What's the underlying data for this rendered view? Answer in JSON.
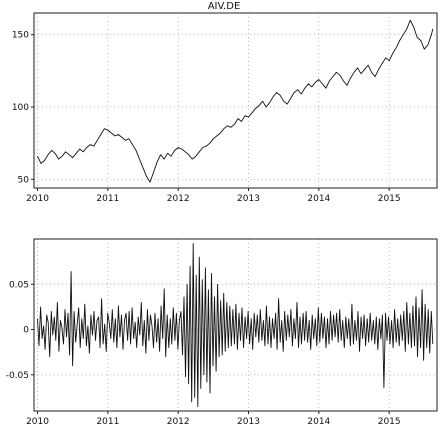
{
  "chart_data": [
    {
      "type": "line",
      "title": "AIV.DE",
      "xlabel": "",
      "ylabel": "",
      "xlim": [
        2009.95,
        2015.68
      ],
      "ylim": [
        44,
        165
      ],
      "grid": true,
      "xticks": [
        2010,
        2011,
        2012,
        2013,
        2014,
        2015
      ],
      "xtick_labels": [
        "2010",
        "2011",
        "2012",
        "2013",
        "2014",
        "2015"
      ],
      "yticks": [
        50,
        100,
        150
      ],
      "ytick_labels": [
        "50",
        "100",
        "150"
      ],
      "series": [
        {
          "x": [
            2010.0,
            2010.05,
            2010.1,
            2010.15,
            2010.2,
            2010.25,
            2010.3,
            2010.35,
            2010.4,
            2010.45,
            2010.5,
            2010.55,
            2010.6,
            2010.65,
            2010.7,
            2010.75,
            2010.8,
            2010.85,
            2010.9,
            2010.95,
            2011.0,
            2011.05,
            2011.1,
            2011.15,
            2011.2,
            2011.25,
            2011.3,
            2011.35,
            2011.4,
            2011.45,
            2011.5,
            2011.55,
            2011.6,
            2011.65,
            2011.7,
            2011.75,
            2011.8,
            2011.85,
            2011.9,
            2011.95,
            2012.0,
            2012.05,
            2012.1,
            2012.15,
            2012.2,
            2012.25,
            2012.3,
            2012.35,
            2012.4,
            2012.45,
            2012.5,
            2012.55,
            2012.6,
            2012.65,
            2012.7,
            2012.75,
            2012.8,
            2012.85,
            2012.9,
            2012.95,
            2013.0,
            2013.05,
            2013.1,
            2013.15,
            2013.2,
            2013.25,
            2013.3,
            2013.35,
            2013.4,
            2013.45,
            2013.5,
            2013.55,
            2013.6,
            2013.65,
            2013.7,
            2013.75,
            2013.8,
            2013.85,
            2013.9,
            2013.95,
            2014.0,
            2014.05,
            2014.1,
            2014.15,
            2014.2,
            2014.25,
            2014.3,
            2014.35,
            2014.4,
            2014.45,
            2014.5,
            2014.55,
            2014.6,
            2014.65,
            2014.7,
            2014.75,
            2014.8,
            2014.85,
            2014.9,
            2014.95,
            2015.0,
            2015.05,
            2015.1,
            2015.15,
            2015.2,
            2015.25,
            2015.3,
            2015.35,
            2015.4,
            2015.45,
            2015.5,
            2015.55,
            2015.6,
            2015.62
          ],
          "values": [
            66,
            61,
            63,
            67,
            70,
            68,
            64,
            66,
            69,
            67,
            65,
            68,
            71,
            69,
            72,
            74,
            73,
            77,
            81,
            85,
            84,
            82,
            80,
            81,
            79,
            77,
            78,
            74,
            70,
            64,
            58,
            52,
            48,
            55,
            62,
            67,
            64,
            68,
            66,
            70,
            72,
            71,
            69,
            67,
            64,
            66,
            69,
            72,
            73,
            75,
            78,
            80,
            82,
            85,
            87,
            86,
            88,
            92,
            90,
            94,
            93,
            96,
            99,
            101,
            104,
            100,
            103,
            107,
            110,
            108,
            104,
            102,
            106,
            110,
            112,
            109,
            113,
            116,
            114,
            117,
            119,
            116,
            113,
            118,
            121,
            124,
            122,
            118,
            115,
            120,
            124,
            127,
            123,
            126,
            129,
            124,
            121,
            126,
            130,
            134,
            132,
            137,
            141,
            146,
            150,
            154,
            160,
            155,
            148,
            146,
            140,
            143,
            150,
            154
          ]
        }
      ]
    },
    {
      "type": "line",
      "title": "",
      "xlabel": "",
      "ylabel": "",
      "xlim": [
        2009.95,
        2015.68
      ],
      "ylim": [
        -0.09,
        0.1
      ],
      "grid": true,
      "xticks": [
        2010,
        2011,
        2012,
        2013,
        2014,
        2015
      ],
      "xtick_labels": [
        "2010",
        "2011",
        "2012",
        "2013",
        "2014",
        "2015"
      ],
      "yticks": [
        -0.05,
        0,
        0.05
      ],
      "ytick_labels": [
        "-0.05",
        "0",
        "0.05"
      ],
      "series": [
        {
          "x_start": 2010.0,
          "x_end": 2015.62,
          "values": [
            0.012,
            -0.018,
            0.025,
            -0.01,
            0.004,
            -0.022,
            0.016,
            0.008,
            -0.03,
            0.02,
            -0.006,
            0.014,
            -0.012,
            0.03,
            -0.024,
            0.01,
            0.002,
            -0.016,
            0.022,
            -0.008,
            0.018,
            -0.028,
            0.064,
            -0.04,
            0.02,
            -0.014,
            0.006,
            0.024,
            -0.02,
            0.012,
            -0.01,
            0.028,
            -0.018,
            0.004,
            -0.026,
            0.016,
            -0.006,
            0.02,
            -0.012,
            0.01,
            0.014,
            -0.02,
            0.034,
            -0.016,
            0.006,
            -0.024,
            0.018,
            0.008,
            -0.01,
            0.022,
            -0.014,
            0.012,
            -0.02,
            0.026,
            -0.008,
            0.016,
            -0.022,
            0.01,
            0.018,
            -0.012,
            0.02,
            -0.016,
            0.024,
            -0.01,
            0.008,
            -0.02,
            0.014,
            -0.006,
            0.03,
            -0.018,
            0.01,
            -0.026,
            0.022,
            -0.012,
            0.016,
            0.004,
            -0.02,
            0.018,
            -0.014,
            0.012,
            -0.024,
            0.026,
            -0.01,
            0.045,
            -0.03,
            0.016,
            -0.02,
            0.012,
            -0.016,
            0.024,
            -0.012,
            0.018,
            -0.022,
            0.01,
            0.02,
            -0.028,
            0.036,
            -0.052,
            0.05,
            -0.06,
            0.07,
            -0.08,
            0.095,
            -0.075,
            0.06,
            -0.085,
            0.08,
            -0.065,
            0.055,
            -0.05,
            0.068,
            -0.058,
            0.044,
            -0.07,
            0.062,
            -0.04,
            0.036,
            -0.046,
            0.05,
            -0.03,
            0.032,
            -0.028,
            0.04,
            -0.024,
            0.03,
            -0.02,
            0.026,
            -0.018,
            0.022,
            -0.016,
            0.028,
            -0.022,
            0.018,
            -0.012,
            0.024,
            -0.02,
            0.014,
            -0.01,
            0.02,
            -0.016,
            0.012,
            -0.022,
            0.018,
            -0.008,
            0.016,
            -0.014,
            0.022,
            -0.012,
            0.01,
            -0.018,
            0.026,
            -0.016,
            0.014,
            -0.02,
            0.012,
            -0.01,
            0.018,
            -0.022,
            0.034,
            -0.014,
            0.01,
            -0.024,
            0.02,
            -0.012,
            0.016,
            -0.008,
            0.022,
            -0.018,
            0.012,
            -0.01,
            0.03,
            -0.02,
            0.014,
            -0.016,
            0.018,
            -0.012,
            0.02,
            -0.014,
            0.01,
            -0.022,
            0.016,
            -0.01,
            0.012,
            -0.018,
            0.024,
            -0.014,
            0.018,
            -0.01,
            0.014,
            -0.02,
            0.012,
            -0.016,
            0.02,
            -0.012,
            0.016,
            -0.008,
            0.018,
            -0.014,
            0.022,
            -0.012,
            0.01,
            -0.02,
            0.014,
            -0.01,
            0.012,
            -0.018,
            0.028,
            -0.016,
            0.01,
            -0.012,
            0.02,
            -0.024,
            0.014,
            -0.01,
            0.016,
            -0.018,
            0.012,
            -0.014,
            0.018,
            -0.012,
            0.01,
            -0.016,
            0.014,
            -0.022,
            0.012,
            -0.01,
            0.016,
            -0.064,
            0.018,
            -0.012,
            0.014,
            -0.016,
            0.01,
            -0.02,
            0.022,
            -0.014,
            0.012,
            -0.018,
            0.016,
            -0.012,
            0.02,
            -0.024,
            0.03,
            -0.016,
            0.018,
            -0.02,
            0.026,
            -0.018,
            0.036,
            -0.03,
            0.024,
            -0.02,
            0.044,
            -0.034,
            0.028,
            -0.02,
            0.022,
            -0.026,
            0.02,
            -0.016
          ]
        }
      ]
    }
  ]
}
